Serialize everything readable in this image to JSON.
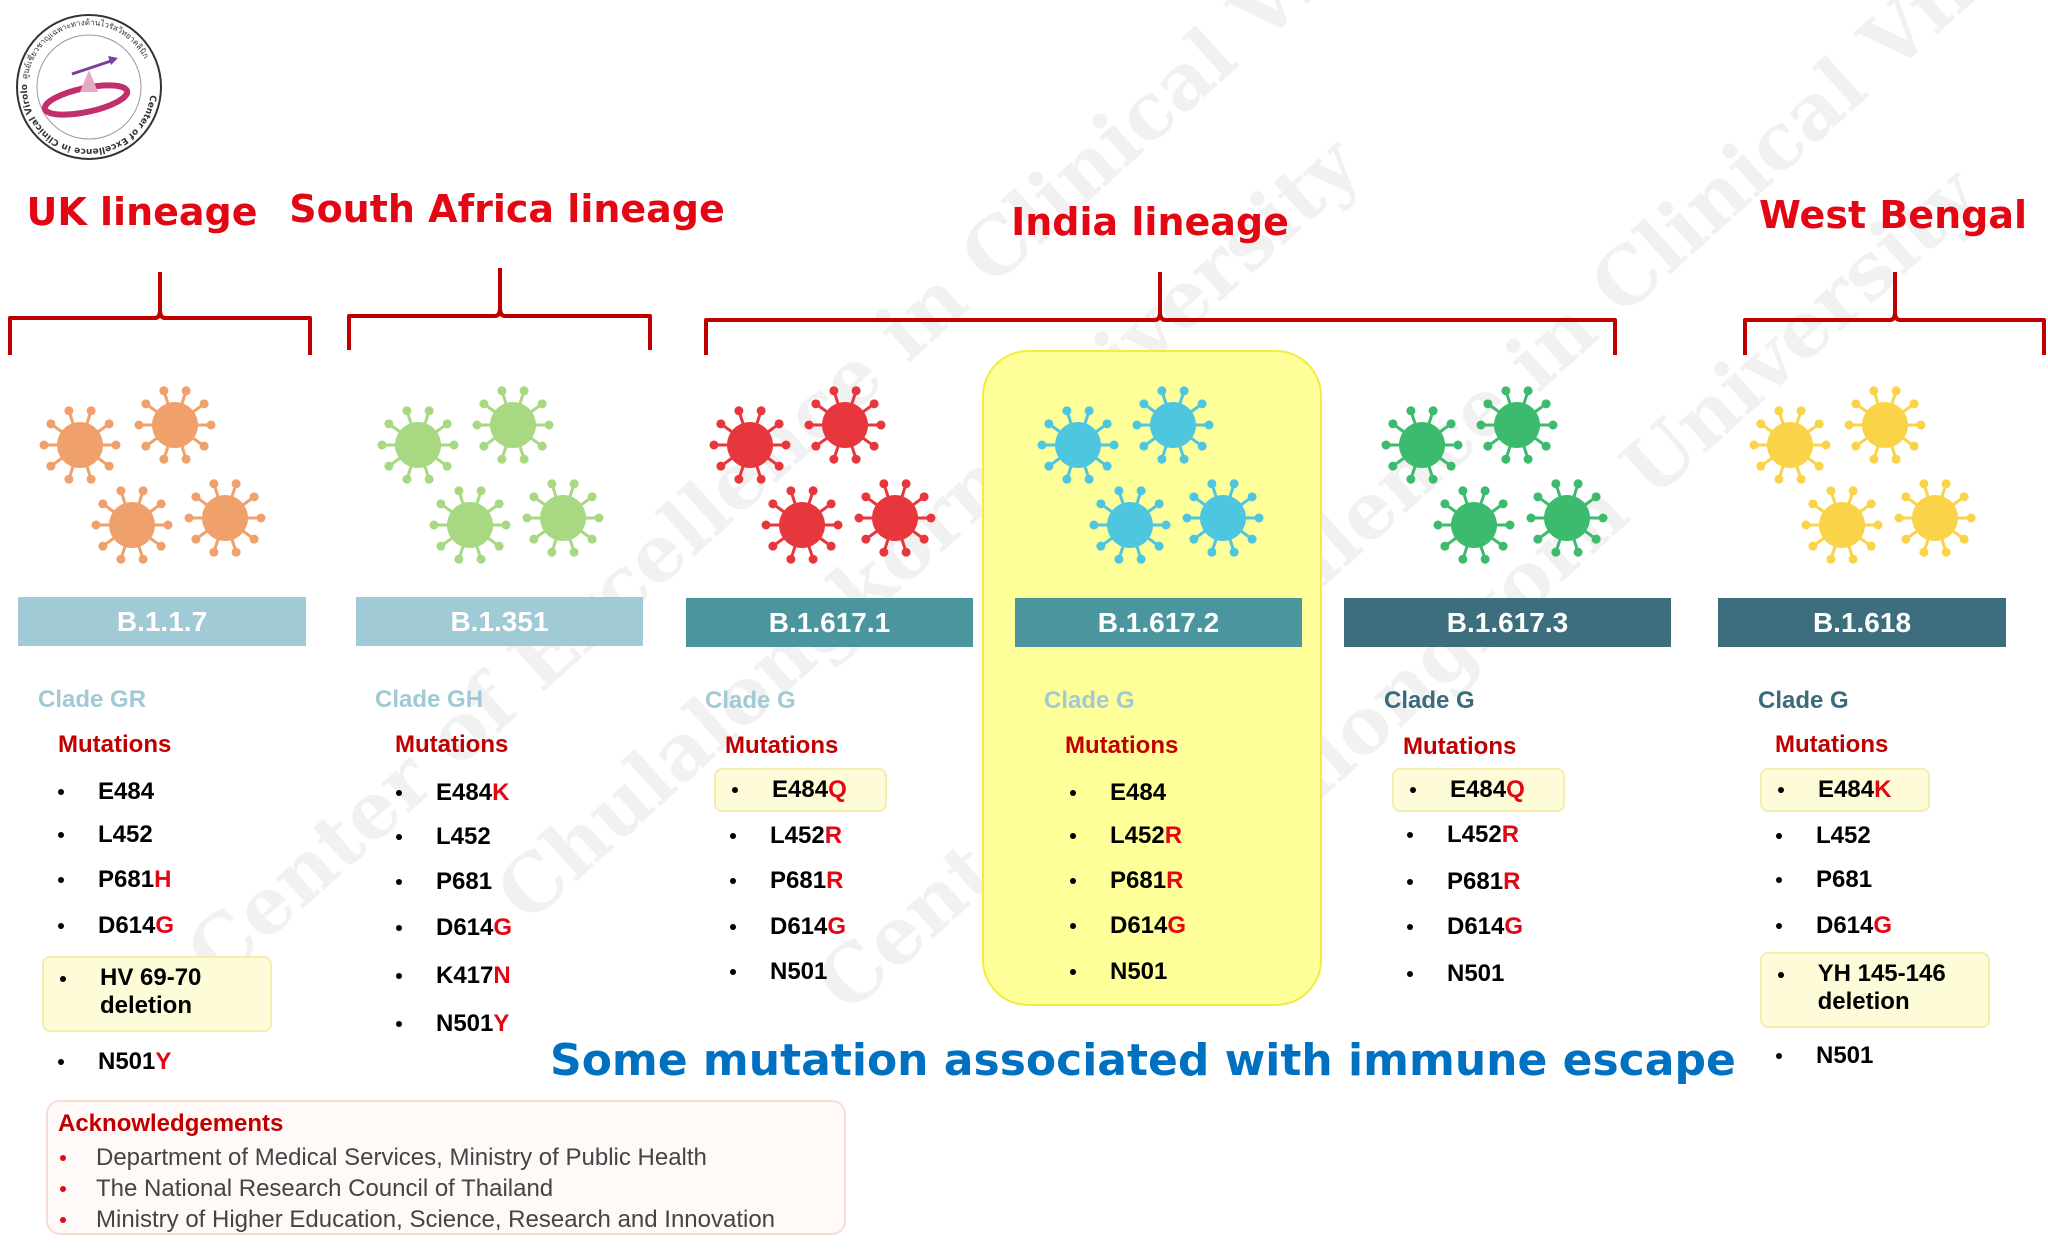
{
  "logo": {
    "text": "Center of Excellence in Clinical Virology",
    "thai_text": "ศูนย์เชี่ยวชาญเฉพาะทางด้านไวรัสวิทยาคลินิก"
  },
  "watermark": {
    "line1": "Center of Excellence in Clinical Virology",
    "line2": "Chulalongkorn University"
  },
  "lineages": [
    {
      "title": "UK lineage"
    },
    {
      "title": "South Africa lineage"
    },
    {
      "title": "India lineage"
    },
    {
      "title": "West Bengal"
    }
  ],
  "variants": [
    {
      "name": "B.1.1.7",
      "clade": "Clade GR",
      "clade_color": "#9fcad6",
      "bar_color": "#9fcad6",
      "virus_color": "#f0a06b",
      "mutations_heading": "Mutations",
      "mutations": [
        {
          "base": "E484",
          "mut": ""
        },
        {
          "base": "L452",
          "mut": ""
        },
        {
          "base": "P681",
          "mut": "H"
        },
        {
          "base": "D614",
          "mut": "G"
        },
        {
          "base": "HV 69-70 deletion",
          "mut": ""
        },
        {
          "base": "N501",
          "mut": "Y"
        }
      ]
    },
    {
      "name": "B.1.351",
      "clade": "Clade GH",
      "clade_color": "#9fcad6",
      "bar_color": "#9fcad6",
      "virus_color": "#a8d882",
      "mutations_heading": "Mutations",
      "mutations": [
        {
          "base": "E484",
          "mut": "K"
        },
        {
          "base": "L452",
          "mut": ""
        },
        {
          "base": "P681",
          "mut": ""
        },
        {
          "base": "D614",
          "mut": "G"
        },
        {
          "base": "K417",
          "mut": "N"
        },
        {
          "base": "N501",
          "mut": "Y"
        }
      ]
    },
    {
      "name": "B.1.617.1",
      "clade": "Clade G",
      "clade_color": "#9fcad6",
      "bar_color": "#4a959e",
      "virus_color": "#e8373c",
      "mutations_heading": "Mutations",
      "mutations": [
        {
          "base": "E484",
          "mut": "Q"
        },
        {
          "base": "L452",
          "mut": "R"
        },
        {
          "base": "P681",
          "mut": "R"
        },
        {
          "base": "D614",
          "mut": "G"
        },
        {
          "base": "N501",
          "mut": ""
        }
      ]
    },
    {
      "name": "B.1.617.2",
      "clade": "Clade G",
      "clade_color": "#9fcad6",
      "bar_color": "#4a959e",
      "virus_color": "#4ec6e0",
      "mutations_heading": "Mutations",
      "mutations": [
        {
          "base": "E484",
          "mut": ""
        },
        {
          "base": "L452",
          "mut": "R"
        },
        {
          "base": "P681",
          "mut": "R"
        },
        {
          "base": "D614",
          "mut": "G"
        },
        {
          "base": "N501",
          "mut": ""
        }
      ]
    },
    {
      "name": "B.1.617.3",
      "clade": "Clade G",
      "clade_color": "#3a6b7c",
      "bar_color": "#3d6e7e",
      "virus_color": "#3cba6e",
      "mutations_heading": "Mutations",
      "mutations": [
        {
          "base": "E484",
          "mut": "Q"
        },
        {
          "base": "L452",
          "mut": "R"
        },
        {
          "base": "P681",
          "mut": "R"
        },
        {
          "base": "D614",
          "mut": "G"
        },
        {
          "base": "N501",
          "mut": ""
        }
      ]
    },
    {
      "name": "B.1.618",
      "clade": "Clade G",
      "clade_color": "#3a6b7c",
      "bar_color": "#3d6e7e",
      "virus_color": "#fbd348",
      "mutations_heading": "Mutations",
      "mutations": [
        {
          "base": "E484",
          "mut": "K"
        },
        {
          "base": "L452",
          "mut": ""
        },
        {
          "base": "P681",
          "mut": ""
        },
        {
          "base": "D614",
          "mut": "G"
        },
        {
          "base": "YH 145-146 deletion",
          "mut": ""
        },
        {
          "base": "N501",
          "mut": ""
        }
      ]
    }
  ],
  "footer_note": "Some mutation associated with immune escape",
  "acknowledgements": {
    "title": "Acknowledgements",
    "items": [
      "Department of Medical Services, Ministry of Public Health",
      "The National Research Council of Thailand",
      "Ministry of Higher Education, Science, Research and Innovation"
    ]
  },
  "colors": {
    "lineage_title": "#e30613",
    "bracket": "#c00000",
    "highlight_panel": "#ffff99",
    "mutation_red": "#e30613",
    "footer_note": "#0070c0"
  }
}
